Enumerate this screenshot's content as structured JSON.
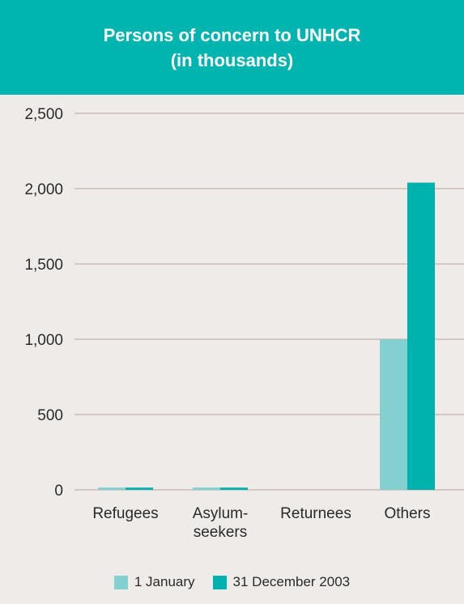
{
  "header": {
    "title_line1": "Persons of concern to UNHCR",
    "title_line2": "(in thousands)"
  },
  "colors": {
    "header_bg": "#00b4b0",
    "background": "#efebe8",
    "series_1": "#82d0cf",
    "series_2": "#00b2ae",
    "gridline": "#b7a69f"
  },
  "chart_data": {
    "type": "bar",
    "title": "Persons of concern to UNHCR (in thousands)",
    "categories": [
      [
        "Refugees"
      ],
      [
        "Asylum-",
        "seekers"
      ],
      [
        "Returnees"
      ],
      [
        "Others"
      ]
    ],
    "series": [
      {
        "name": "1 January",
        "values": [
          15,
          15,
          0,
          1000
        ]
      },
      {
        "name": "31 December 2003",
        "values": [
          15,
          15,
          0,
          2040
        ]
      }
    ],
    "ylim": [
      0,
      2500
    ],
    "yticks": [
      0,
      500,
      1000,
      1500,
      2000,
      2500
    ],
    "ytick_labels": [
      "0",
      "500",
      "1,000",
      "1,500",
      "2,000",
      "2,500"
    ],
    "grid": true,
    "legend_position": "bottom"
  }
}
